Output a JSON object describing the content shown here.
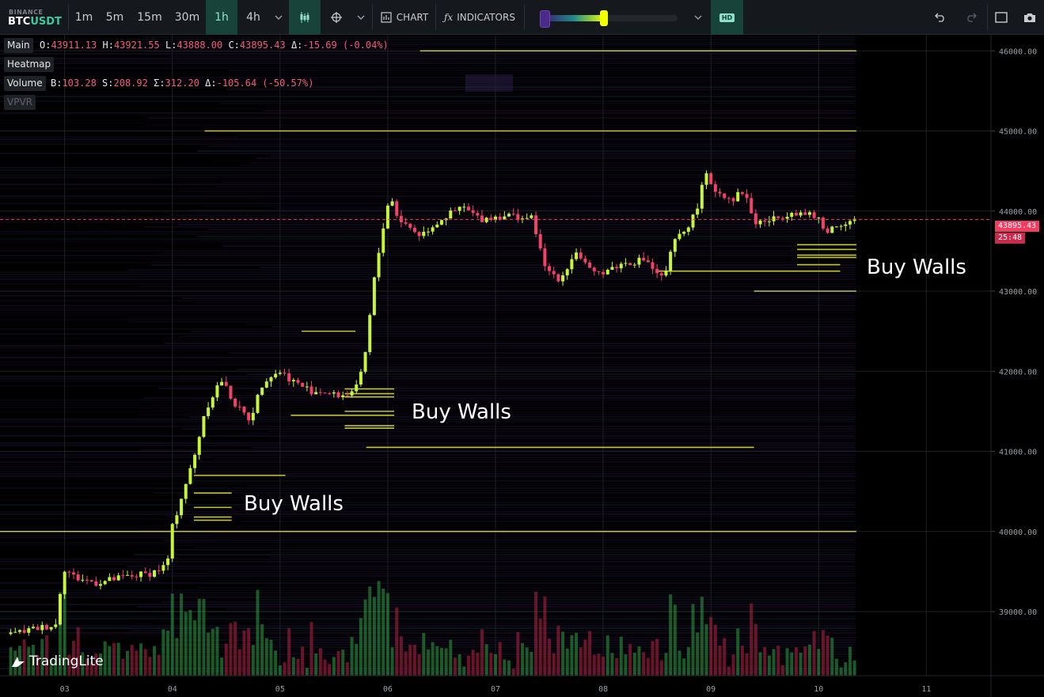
{
  "toolbar": {
    "exchange": "BINANCE",
    "pair_base": "BTC",
    "pair_quote": "USDT",
    "timeframes": [
      {
        "label": "1m",
        "active": false
      },
      {
        "label": "5m",
        "active": false
      },
      {
        "label": "15m",
        "active": false
      },
      {
        "label": "30m",
        "active": false
      },
      {
        "label": "1h",
        "active": true
      },
      {
        "label": "4h",
        "active": false
      }
    ],
    "chart_label": "CHART",
    "indicators_label": "INDICATORS",
    "hd_label": "HD",
    "icons": {
      "timeframe_dropdown": "chevron-down-icon",
      "candles": "candlestick-icon",
      "crosshair": "crosshair-icon",
      "chart": "chart-icon",
      "indicators": "function-icon",
      "undo": "undo-icon",
      "redo": "redo-icon",
      "fullscreen": "fullscreen-icon",
      "screenshot": "camera-icon"
    }
  },
  "legend": {
    "main": {
      "label": "Main",
      "open_key": "O:",
      "open": "43911.13",
      "high_key": "H:",
      "high": "43921.55",
      "low_key": "L:",
      "low": "43888.00",
      "close_key": "C:",
      "close": "43895.43",
      "delta_key": "Δ:",
      "delta": "-15.69 (-0.04%)"
    },
    "heatmap": {
      "label": "Heatmap"
    },
    "volume": {
      "label": "Volume",
      "buy_key": "B:",
      "buy": "103.28",
      "sell_key": "S:",
      "sell": "208.92",
      "sum_key": "Σ:",
      "sum": "312.20",
      "delta_key": "Δ:",
      "delta": "-105.64 (-50.57%)"
    },
    "vpvr": {
      "label": "VPVR"
    }
  },
  "annotations": [
    "Buy Walls",
    "Buy Walls",
    "Buy Walls"
  ],
  "price_tag": {
    "price": "43895.43",
    "countdown": "25:48"
  },
  "logo": "TradingLite",
  "colors": {
    "up": "#c6f53a",
    "down": "#f2416a",
    "wall": "#d7d93a",
    "accent": "#3ccb9d",
    "last_price": "#f23d63"
  },
  "chart_data": {
    "type": "candlestick",
    "price_axis": {
      "ticks": [
        39000,
        40000,
        41000,
        42000,
        43000,
        44000,
        45000,
        46000
      ],
      "labels": [
        "39000.00",
        "40000.00",
        "41000.00",
        "42000.00",
        "43000.00",
        "44000.00",
        "45000.00",
        "46000.00"
      ],
      "range": [
        38200,
        46200
      ]
    },
    "time_axis": {
      "labels": [
        "03",
        "04",
        "05",
        "06",
        "07",
        "08",
        "09",
        "10",
        "11"
      ],
      "range": [
        2.4,
        11.6
      ]
    },
    "last_price": 43895.43,
    "anchors": [
      [
        2.5,
        38720
      ],
      [
        2.85,
        38820
      ],
      [
        2.93,
        38840
      ],
      [
        2.98,
        39560
      ],
      [
        3.1,
        39420
      ],
      [
        3.3,
        39360
      ],
      [
        3.6,
        39440
      ],
      [
        3.8,
        39480
      ],
      [
        3.95,
        39580
      ],
      [
        4.0,
        40050
      ],
      [
        4.1,
        40500
      ],
      [
        4.2,
        40900
      ],
      [
        4.3,
        41500
      ],
      [
        4.45,
        41900
      ],
      [
        4.6,
        41550
      ],
      [
        4.72,
        41400
      ],
      [
        4.85,
        41900
      ],
      [
        5.0,
        42000
      ],
      [
        5.15,
        41850
      ],
      [
        5.3,
        41750
      ],
      [
        5.4,
        41750
      ],
      [
        5.5,
        41700
      ],
      [
        5.6,
        41700
      ],
      [
        5.72,
        41800
      ],
      [
        5.78,
        42100
      ],
      [
        5.88,
        43200
      ],
      [
        5.97,
        43900
      ],
      [
        6.02,
        44200
      ],
      [
        6.1,
        43900
      ],
      [
        6.3,
        43700
      ],
      [
        6.5,
        43900
      ],
      [
        6.7,
        44050
      ],
      [
        6.85,
        43900
      ],
      [
        7.1,
        43950
      ],
      [
        7.35,
        43900
      ],
      [
        7.45,
        43300
      ],
      [
        7.6,
        43150
      ],
      [
        7.75,
        43500
      ],
      [
        7.9,
        43200
      ],
      [
        8.0,
        43250
      ],
      [
        8.2,
        43350
      ],
      [
        8.4,
        43400
      ],
      [
        8.5,
        43200
      ],
      [
        8.58,
        43200
      ],
      [
        8.65,
        43600
      ],
      [
        8.75,
        43750
      ],
      [
        8.85,
        43950
      ],
      [
        8.95,
        44450
      ],
      [
        9.05,
        44250
      ],
      [
        9.2,
        44150
      ],
      [
        9.3,
        44250
      ],
      [
        9.35,
        44100
      ],
      [
        9.4,
        43850
      ],
      [
        9.6,
        43900
      ],
      [
        9.75,
        44000
      ],
      [
        9.9,
        43950
      ],
      [
        10.0,
        43900
      ],
      [
        10.05,
        43750
      ],
      [
        10.15,
        43800
      ],
      [
        10.3,
        43900
      ],
      [
        10.35,
        43895
      ]
    ],
    "buy_walls": [
      {
        "price": 40700,
        "t0": 4.2,
        "t1": 5.05
      },
      {
        "price": 40480,
        "t0": 4.2,
        "t1": 4.55
      },
      {
        "price": 40300,
        "t0": 4.2,
        "t1": 4.55
      },
      {
        "price": 40180,
        "t0": 4.2,
        "t1": 4.55
      },
      {
        "price": 40140,
        "t0": 4.2,
        "t1": 4.55
      },
      {
        "price": 41780,
        "t0": 5.6,
        "t1": 6.06
      },
      {
        "price": 41720,
        "t0": 5.6,
        "t1": 6.06
      },
      {
        "price": 41680,
        "t0": 5.6,
        "t1": 6.06
      },
      {
        "price": 41500,
        "t0": 5.6,
        "t1": 6.06
      },
      {
        "price": 41450,
        "t0": 5.1,
        "t1": 6.06
      },
      {
        "price": 41320,
        "t0": 5.6,
        "t1": 6.06
      },
      {
        "price": 41290,
        "t0": 5.6,
        "t1": 6.06
      },
      {
        "price": 41050,
        "t0": 5.8,
        "t1": 9.4
      },
      {
        "price": 42500,
        "t0": 5.2,
        "t1": 5.7
      },
      {
        "price": 43580,
        "t0": 9.8,
        "t1": 10.35
      },
      {
        "price": 43520,
        "t0": 9.8,
        "t1": 10.35
      },
      {
        "price": 43450,
        "t0": 9.8,
        "t1": 10.35
      },
      {
        "price": 43420,
        "t0": 9.8,
        "t1": 10.35
      },
      {
        "price": 43330,
        "t0": 9.8,
        "t1": 10.2
      },
      {
        "price": 43250,
        "t0": 8.5,
        "t1": 10.2
      },
      {
        "price": 43000,
        "t0": 9.4,
        "t1": 10.35
      },
      {
        "price": 46000,
        "t0": 6.3,
        "t1": 10.35
      },
      {
        "price": 45000,
        "t0": 4.3,
        "t1": 10.35
      },
      {
        "price": 40000,
        "t0": 2.4,
        "t1": 10.35
      }
    ]
  }
}
